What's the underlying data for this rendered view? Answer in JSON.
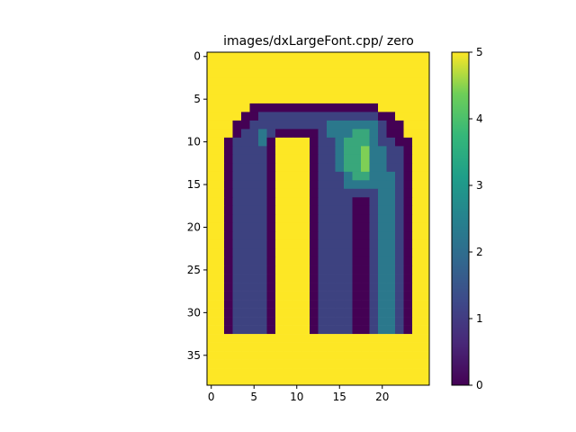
{
  "chart_data": {
    "type": "heatmap",
    "title": "images/dxLargeFont.cpp/ zero",
    "xlabel": "",
    "ylabel": "",
    "n_cols": 26,
    "n_rows": 39,
    "x_ticks": [
      0,
      5,
      10,
      15,
      20
    ],
    "y_ticks": [
      0,
      5,
      10,
      15,
      20,
      25,
      30,
      35
    ],
    "colormap": "viridis",
    "colorbar": {
      "min": 0,
      "max": 5,
      "ticks": [
        0,
        1,
        2,
        3,
        4,
        5
      ]
    },
    "grid": false,
    "matrix": [
      "55555555555555555555555555",
      "55555555555555555555555555",
      "55555555555555555555555555",
      "55555555555555555555555555",
      "55555555555555555555555555",
      "55555555555555555555555555",
      "55555000000000000000555555",
      "55550011111111111111005555",
      "55500111111111222222100555",
      "55501121000001222332100555",
      "55011120555501123332110055",
      "55011110555501123342211055",
      "55011110555501123342211055",
      "55011110555501123342211055",
      "55011110555501112332221055",
      "55011110555501112222221055",
      "55011110555501111111221055",
      "55011110555501111001221055",
      "55011110555501111001221055",
      "55011110555501111001221055",
      "55011110555501111001221055",
      "55011110555501111001221055",
      "55011110555501111001221055",
      "55011110555501111001221055",
      "55011110555501111001221055",
      "55011110555501111001221055",
      "55011110555501111001221055",
      "55011110555501111001221055",
      "55011110555501111001221055",
      "55011110555501111001221055",
      "55011110555501111001221055",
      "55011110555501111001221055",
      "55011110555501111001221055",
      "55555555555555555555555555",
      "55555555555555555555555555",
      "55555555555555555555555555",
      "55555555555555555555555555",
      "55555555555555555555555555",
      "55555555555555555555555555"
    ]
  }
}
